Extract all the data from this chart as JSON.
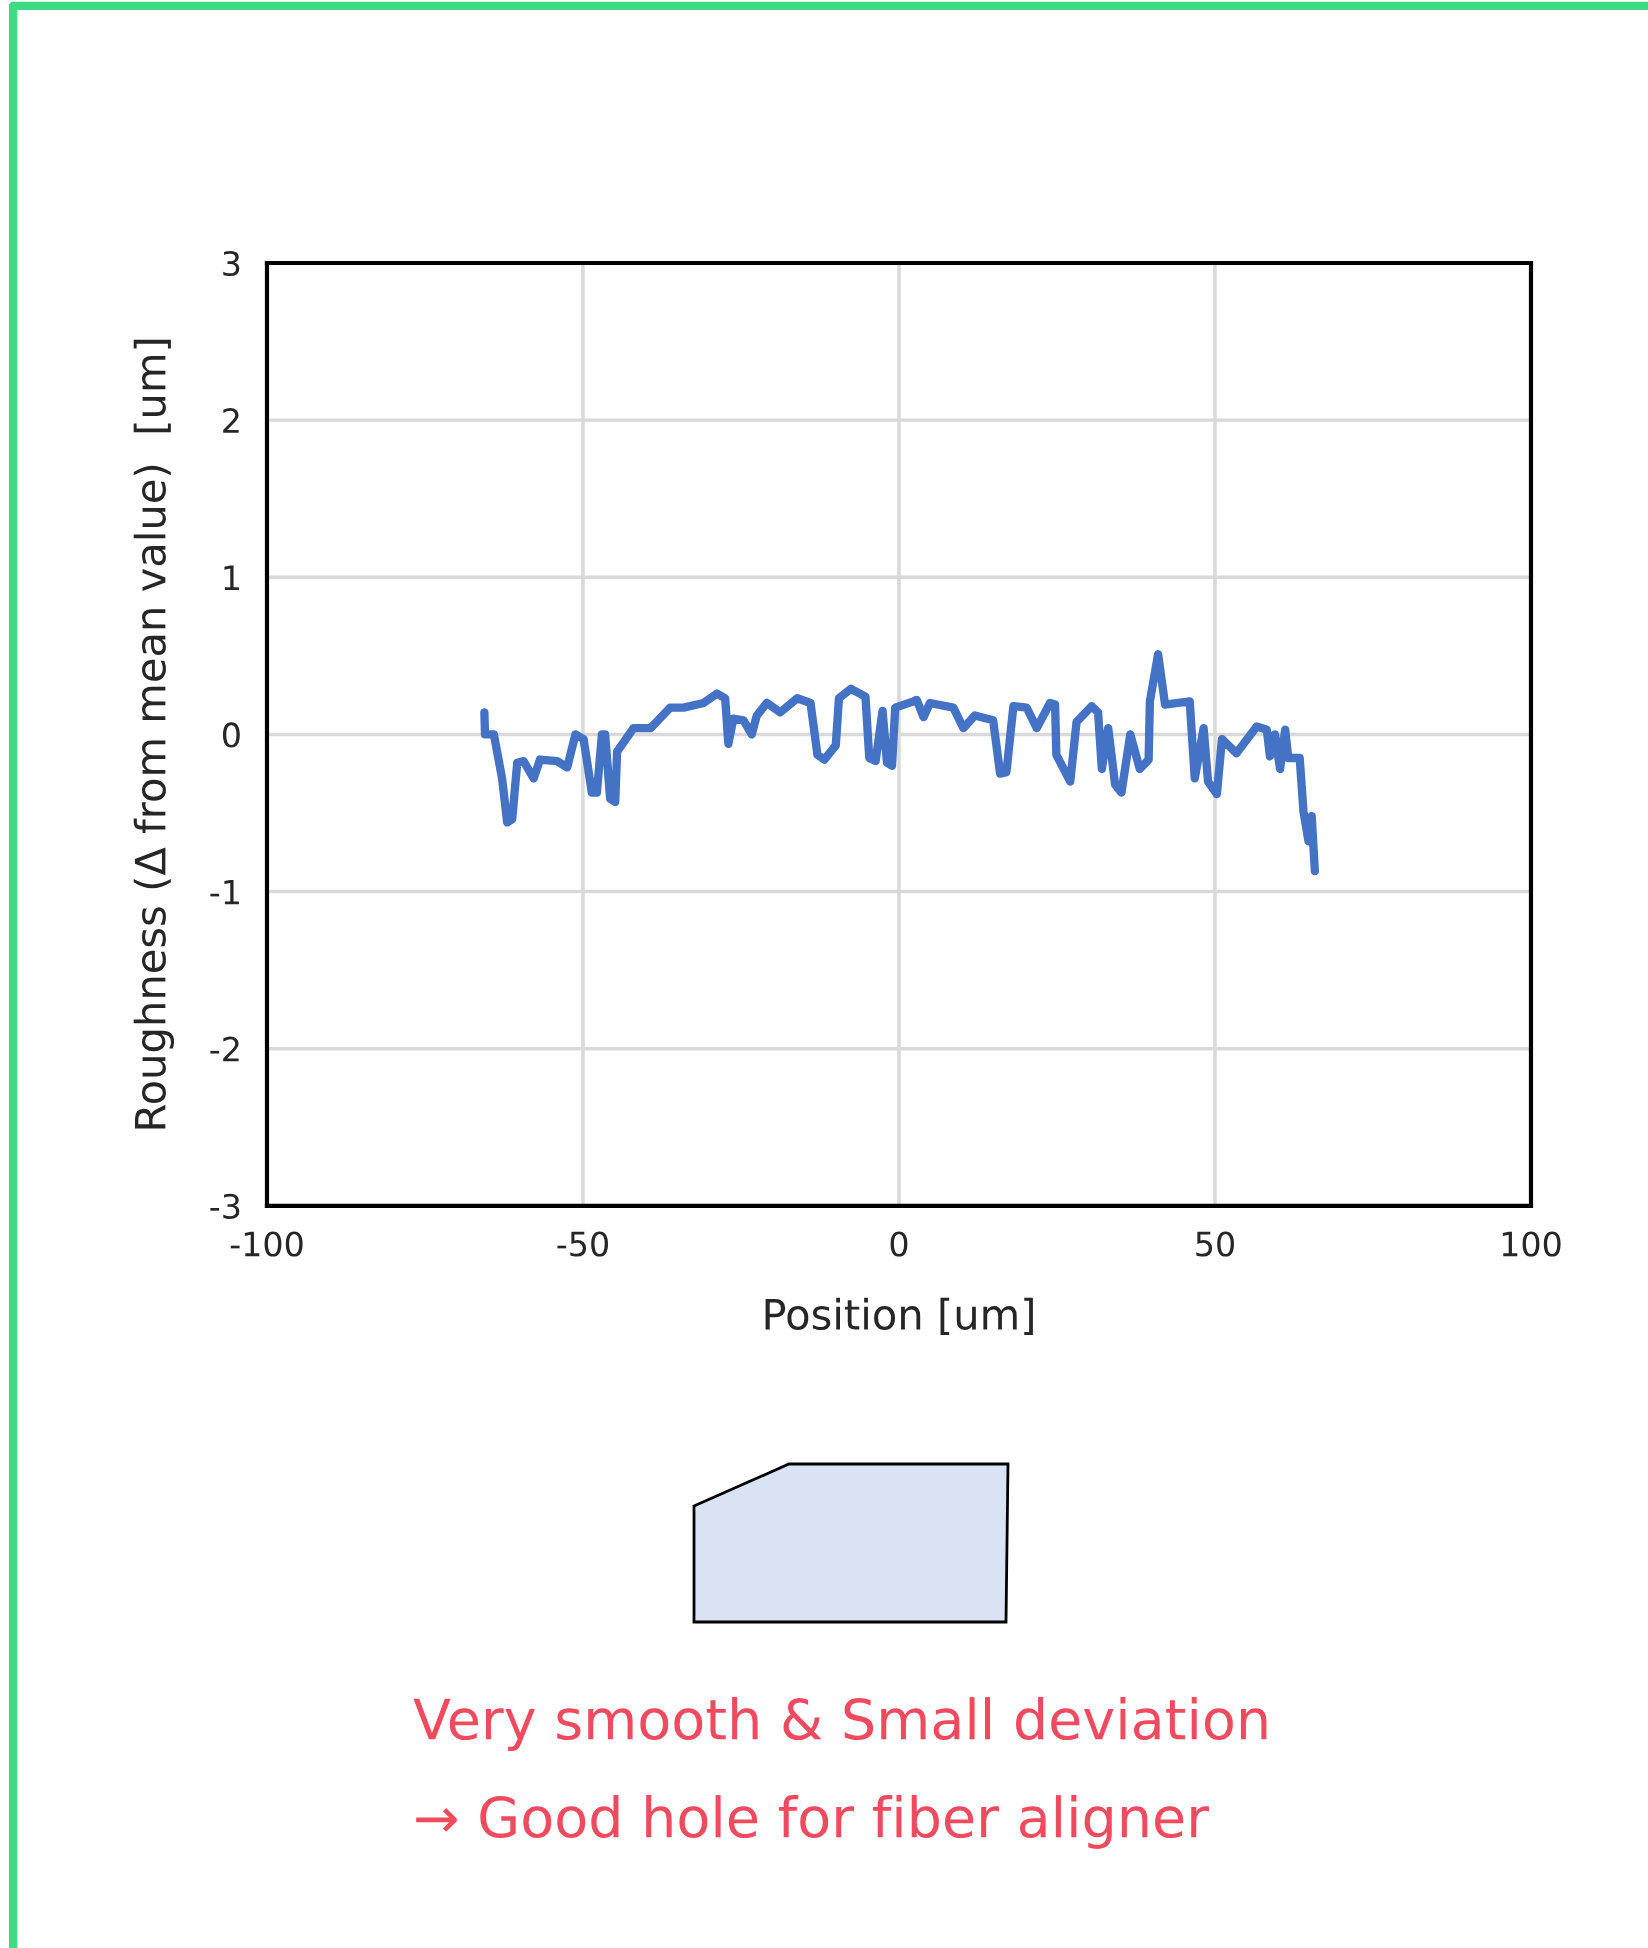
{
  "chart_data": {
    "type": "line",
    "xlabel": "Position [um]",
    "ylabel": "Roughness (Δ from mean value)  [um]",
    "xlim": [
      -100,
      100
    ],
    "xticks": [
      {
        "value": -100,
        "label": "-100"
      },
      {
        "value": -50,
        "label": "-50"
      },
      0,
      50,
      100
    ],
    "ylim": [
      -3,
      3
    ],
    "yticks": [
      {
        "value": -3,
        "label": "-3"
      },
      {
        "value": -2,
        "label": "-2"
      },
      {
        "value": -1,
        "label": "-1"
      },
      0,
      1,
      2,
      3
    ],
    "grid": true,
    "marker": "none",
    "line_style": "solid",
    "annotations": [
      "Very smooth & Small deviation",
      "→ Good hole for fiber aligner"
    ],
    "series": [
      {
        "color": "#4472c4",
        "x": [
          -65.6,
          -65.5,
          -64.1,
          -62.8,
          -62.0,
          -61.2,
          -60.4,
          -59.4,
          -57.8,
          -56.8,
          -54.1,
          -52.5,
          -51.2,
          -49.9,
          -48.6,
          -47.8,
          -47.0,
          -46.5,
          -45.7,
          -44.9,
          -44.6,
          -42.0,
          -39.3,
          -36.2,
          -34.1,
          -30.9,
          -28.8,
          -27.5,
          -27.0,
          -26.2,
          -24.6,
          -23.3,
          -22.5,
          -20.9,
          -18.8,
          -16.1,
          -14.0,
          -12.9,
          -11.8,
          -10.0,
          -9.5,
          -7.6,
          -5.3,
          -4.7,
          -3.7,
          -2.6,
          -1.9,
          -1.1,
          -0.6,
          2.3,
          2.8,
          3.9,
          4.9,
          8.6,
          10.2,
          12.0,
          14.9,
          16.0,
          17.0,
          18.1,
          20.2,
          21.8,
          23.9,
          24.7,
          24.9,
          27.1,
          28.1,
          30.5,
          31.5,
          32.1,
          33.1,
          34.2,
          35.2,
          36.6,
          38.1,
          39.5,
          39.7,
          41.0,
          42.1,
          46.0,
          46.8,
          48.2,
          48.9,
          50.3,
          51.1,
          53.4,
          56.6,
          58.2,
          58.7,
          59.5,
          60.3,
          61.1,
          61.6,
          63.4,
          64.0,
          64.8,
          65.3,
          65.8
        ],
        "values": [
          0.14,
          0.0,
          0.0,
          -0.28,
          -0.56,
          -0.54,
          -0.18,
          -0.17,
          -0.28,
          -0.16,
          -0.17,
          -0.21,
          0.0,
          -0.03,
          -0.37,
          -0.37,
          0.0,
          0.0,
          -0.41,
          -0.43,
          -0.11,
          0.04,
          0.04,
          0.17,
          0.17,
          0.2,
          0.26,
          0.23,
          -0.06,
          0.1,
          0.09,
          0.0,
          0.12,
          0.2,
          0.14,
          0.23,
          0.2,
          -0.13,
          -0.16,
          -0.07,
          0.23,
          0.29,
          0.24,
          -0.15,
          -0.17,
          0.15,
          -0.18,
          -0.2,
          0.17,
          0.21,
          0.22,
          0.11,
          0.2,
          0.17,
          0.04,
          0.12,
          0.09,
          -0.25,
          -0.24,
          0.18,
          0.17,
          0.04,
          0.2,
          0.19,
          -0.13,
          -0.3,
          0.08,
          0.18,
          0.14,
          -0.22,
          0.04,
          -0.32,
          -0.37,
          0.0,
          -0.22,
          -0.16,
          0.21,
          0.51,
          0.19,
          0.21,
          -0.28,
          0.04,
          -0.3,
          -0.38,
          -0.03,
          -0.12,
          0.05,
          0.03,
          -0.14,
          0.0,
          -0.22,
          0.03,
          -0.15,
          -0.15,
          -0.49,
          -0.68,
          -0.52,
          -0.87
        ]
      }
    ]
  }
}
